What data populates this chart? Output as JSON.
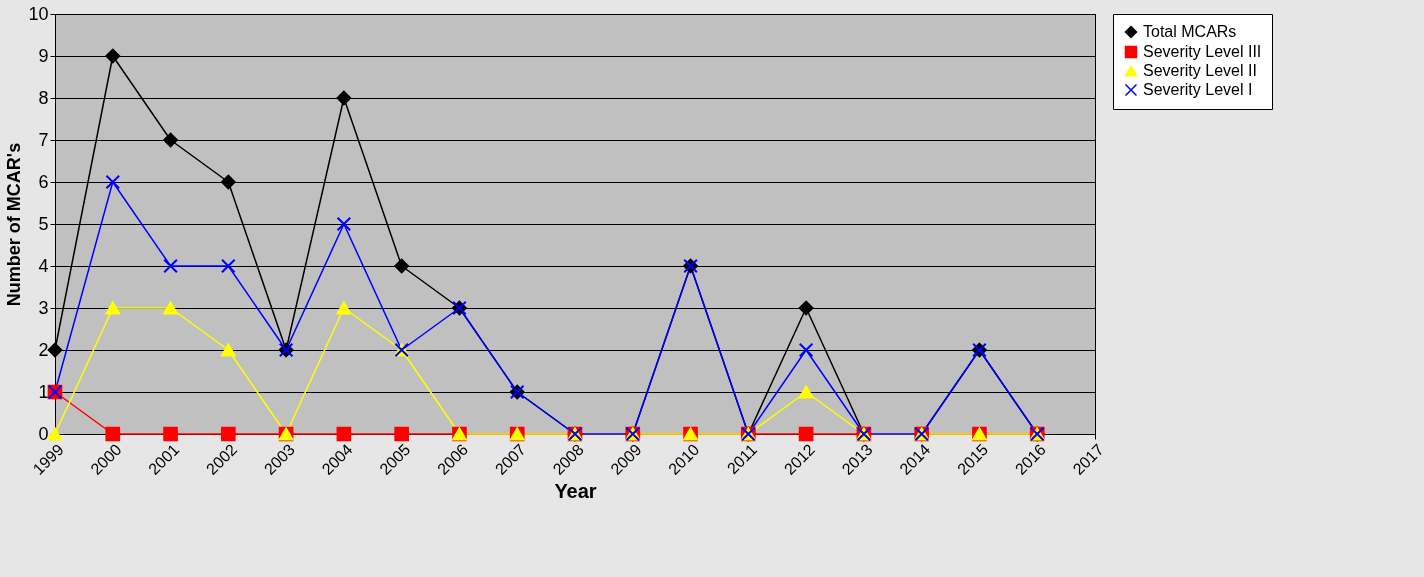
{
  "chart_data": {
    "type": "line",
    "xlabel": "Year",
    "ylabel": "Number of MCAR's",
    "categories": [
      "1999",
      "2000",
      "2001",
      "2002",
      "2003",
      "2004",
      "2005",
      "2006",
      "2007",
      "2008",
      "2009",
      "2010",
      "2011",
      "2012",
      "2013",
      "2014",
      "2015",
      "2016",
      "2017"
    ],
    "series": [
      {
        "name": "Total MCARs",
        "color": "#000000",
        "marker": "diamond",
        "values": [
          2,
          9,
          7,
          6,
          2,
          8,
          4,
          3,
          1,
          0,
          0,
          4,
          0,
          3,
          0,
          0,
          2,
          0,
          null
        ]
      },
      {
        "name": "Severity Level III",
        "color": "#ff0000",
        "marker": "square",
        "values": [
          1,
          0,
          0,
          0,
          0,
          0,
          0,
          0,
          0,
          0,
          0,
          0,
          0,
          0,
          0,
          0,
          0,
          0,
          null
        ]
      },
      {
        "name": "Severity Level II",
        "color": "#ffff00",
        "marker": "triangle",
        "values": [
          0,
          3,
          3,
          2,
          0,
          3,
          2,
          0,
          0,
          0,
          0,
          0,
          0,
          1,
          0,
          0,
          0,
          0,
          null
        ]
      },
      {
        "name": "Severity Level I",
        "color": "#0000ff",
        "marker": "cross",
        "values": [
          1,
          6,
          4,
          4,
          2,
          5,
          2,
          3,
          1,
          0,
          0,
          4,
          0,
          2,
          0,
          0,
          2,
          0,
          null
        ]
      }
    ],
    "ylim": [
      0,
      10
    ],
    "yticks": [
      0,
      1,
      2,
      3,
      4,
      5,
      6,
      7,
      8,
      9,
      10
    ],
    "grid": "y",
    "legend": "right"
  }
}
